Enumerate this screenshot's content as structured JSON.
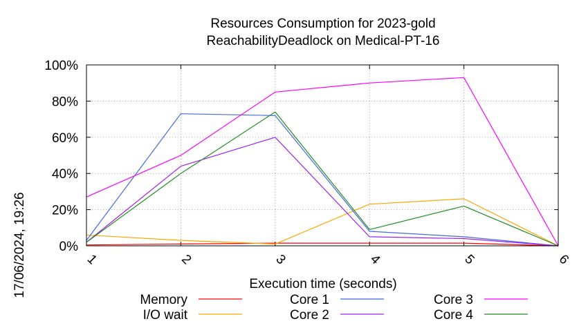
{
  "chart_data": {
    "type": "line",
    "title": "Resources Consumption for 2023-gold",
    "subtitle": "ReachabilityDeadlock on Medical-PT-16",
    "xlabel": "Execution time (seconds)",
    "ylabel": "",
    "side_label": "17/06/2024, 19:26",
    "x": [
      1,
      2,
      3,
      4,
      5,
      6
    ],
    "x_ticks": [
      "1",
      "2",
      "3",
      "4",
      "5",
      "6"
    ],
    "y_ticks": [
      "0%",
      "20%",
      "40%",
      "60%",
      "80%",
      "100%"
    ],
    "ylim": [
      0,
      100
    ],
    "xlim": [
      1,
      6
    ],
    "grid": true,
    "legend_position": "bottom",
    "series": [
      {
        "name": "Memory",
        "color": "#ff0000",
        "values": [
          0.5,
          1,
          1.5,
          1.5,
          1.5,
          0
        ]
      },
      {
        "name": "I/O wait",
        "color": "#ffa500",
        "values": [
          6,
          3,
          1,
          23,
          26,
          0
        ]
      },
      {
        "name": "Core 1",
        "color": "#4169e1",
        "values": [
          3,
          73,
          72,
          8,
          5,
          0
        ]
      },
      {
        "name": "Core 2",
        "color": "#a020f0",
        "values": [
          2,
          44,
          60,
          5,
          4,
          0
        ]
      },
      {
        "name": "Core 3",
        "color": "#ff00ff",
        "values": [
          27,
          50,
          85,
          90,
          93,
          0
        ]
      },
      {
        "name": "Core 4",
        "color": "#228b22",
        "values": [
          2,
          40,
          74,
          9,
          22,
          0
        ]
      }
    ]
  }
}
